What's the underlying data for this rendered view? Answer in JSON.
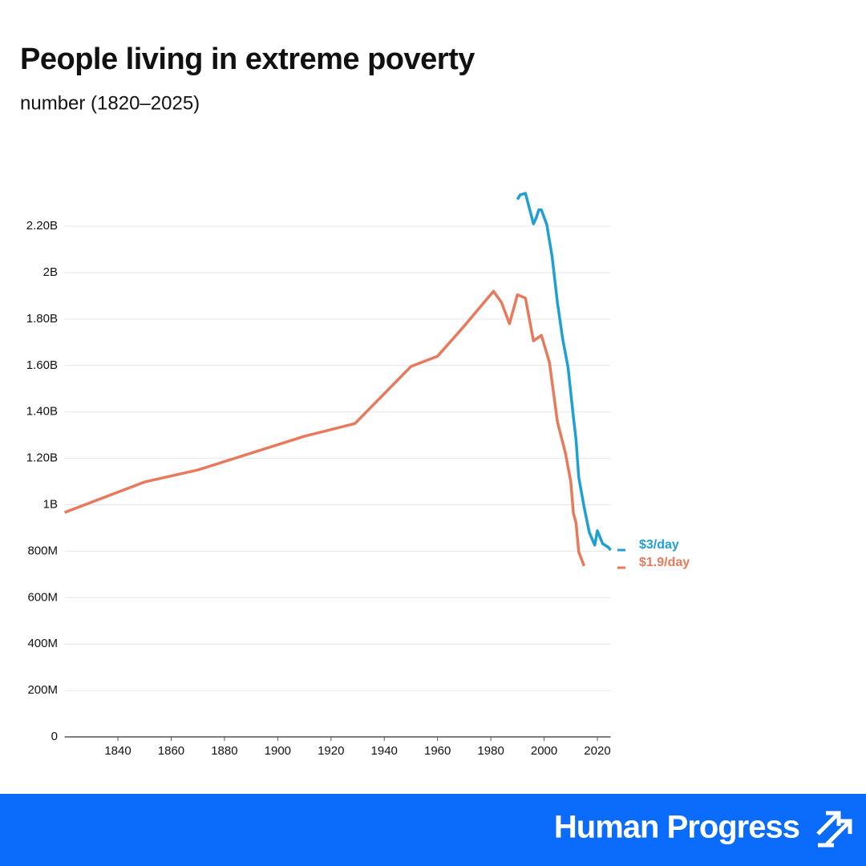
{
  "chart_data": {
    "type": "line",
    "title": "People living in extreme poverty",
    "subtitle": "number (1820–2025)",
    "xlim": [
      1820,
      2025
    ],
    "xticks": [
      1840,
      1860,
      1880,
      1900,
      1920,
      1940,
      1960,
      1980,
      2000,
      2020
    ],
    "ylim": [
      0,
      2400000000
    ],
    "yticks": [
      0,
      {
        "value": 200000000,
        "label": "200M"
      },
      {
        "value": 400000000,
        "label": "400M"
      },
      {
        "value": 600000000,
        "label": "600M"
      },
      {
        "value": 800000000,
        "label": "800M"
      },
      {
        "value": 1000000000,
        "label": "1B"
      },
      {
        "value": 1200000000,
        "label": "1.20B"
      },
      {
        "value": 1400000000,
        "label": "1.40B"
      },
      {
        "value": 1600000000,
        "label": "1.60B"
      },
      {
        "value": 1800000000,
        "label": "1.80B"
      },
      {
        "value": 2000000000,
        "label": "2B"
      },
      {
        "value": 2200000000,
        "label": "2.20B"
      }
    ],
    "grid": true,
    "series": [
      {
        "name": "$3/day",
        "color": "#1f9fd4",
        "x": [
          1990,
          1991,
          1993,
          1996,
          1997,
          1998,
          1999,
          2001,
          2003,
          2005,
          2007,
          2009,
          2011,
          2012,
          2013,
          2015,
          2017,
          2019,
          2020,
          2021,
          2022,
          2024,
          2025
        ],
        "values": [
          2315000000,
          2335000000,
          2342000000,
          2210000000,
          2235000000,
          2270000000,
          2270000000,
          2207000000,
          2070000000,
          1870000000,
          1713000000,
          1592000000,
          1378000000,
          1280000000,
          1120000000,
          991000000,
          880000000,
          826000000,
          888000000,
          860000000,
          832000000,
          818000000,
          805000000
        ]
      },
      {
        "name": "$1.9/day",
        "color": "#e8795a",
        "x": [
          1820,
          1850,
          1870,
          1910,
          1929,
          1950,
          1960,
          1970,
          1981,
          1984,
          1987,
          1990,
          1993,
          1996,
          1999,
          2002,
          2005,
          2008,
          2010,
          2011,
          2012,
          2013,
          2015
        ],
        "values": [
          967000000,
          1098000000,
          1150000000,
          1295000000,
          1350000000,
          1596000000,
          1640000000,
          1770000000,
          1920000000,
          1872000000,
          1780000000,
          1905000000,
          1890000000,
          1706000000,
          1730000000,
          1613000000,
          1357000000,
          1223000000,
          1100000000,
          964000000,
          922000000,
          798000000,
          736000000
        ]
      }
    ],
    "brand": "Human Progress"
  }
}
